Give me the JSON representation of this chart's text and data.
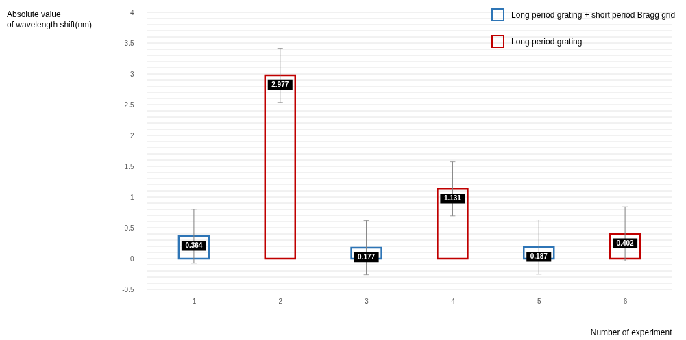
{
  "chart_data": {
    "type": "bar",
    "xlabel": "Number of experiment",
    "ylabel": "Absolute value of wavelength shift(nm)",
    "categories": [
      "1",
      "2",
      "3",
      "4",
      "5",
      "6"
    ],
    "series": [
      {
        "name": "Long period grating + short period Bragg grid",
        "color": "#2e75b6",
        "values": [
          0.364,
          null,
          0.177,
          null,
          0.187,
          null
        ],
        "errors": [
          0.44,
          null,
          0.44,
          null,
          0.44,
          null
        ]
      },
      {
        "name": "Long period grating",
        "color": "#c00000",
        "values": [
          null,
          2.977,
          null,
          1.131,
          null,
          0.402
        ],
        "errors": [
          null,
          0.44,
          null,
          0.44,
          null,
          0.44
        ]
      }
    ],
    "ylim": [
      -0.5,
      4
    ],
    "yticks": [
      -0.5,
      {
        "value": -0.4,
        "label": null
      },
      {
        "value": -0.3,
        "label": null
      },
      {
        "value": -0.2,
        "label": null
      },
      {
        "value": -0.1,
        "label": null
      },
      0,
      {
        "value": 0.1,
        "label": null
      },
      {
        "value": 0.2,
        "label": null
      },
      {
        "value": 0.3,
        "label": null
      },
      {
        "value": 0.4,
        "label": null
      },
      0.5,
      {
        "value": 0.6,
        "label": null
      },
      {
        "value": 0.7,
        "label": null
      },
      {
        "value": 0.8,
        "label": null
      },
      {
        "value": 0.9,
        "label": null
      },
      1,
      {
        "value": 1.1,
        "label": null
      },
      {
        "value": 1.2,
        "label": null
      },
      {
        "value": 1.3,
        "label": null
      },
      {
        "value": 1.4,
        "label": null
      },
      1.5,
      {
        "value": 1.6,
        "label": null
      },
      {
        "value": 1.7,
        "label": null
      },
      {
        "value": 1.8,
        "label": null
      },
      {
        "value": 1.9,
        "label": null
      },
      2,
      {
        "value": 2.1,
        "label": null
      },
      {
        "value": 2.2,
        "label": null
      },
      {
        "value": 2.3,
        "label": null
      },
      {
        "value": 2.4,
        "label": null
      },
      2.5,
      {
        "value": 2.6,
        "label": null
      },
      {
        "value": 2.7,
        "label": null
      },
      {
        "value": 2.8,
        "label": null
      },
      {
        "value": 2.9,
        "label": null
      },
      3,
      {
        "value": 3.1,
        "label": null
      },
      {
        "value": 3.2,
        "label": null
      },
      {
        "value": 3.3,
        "label": null
      },
      {
        "value": 3.4,
        "label": null
      },
      3.5,
      {
        "value": 3.6,
        "label": null
      },
      {
        "value": 3.7,
        "label": null
      },
      {
        "value": 3.8,
        "label": null
      },
      {
        "value": 3.9,
        "label": null
      },
      4
    ],
    "grid": "y",
    "legend": "top right",
    "data_labels": true
  }
}
